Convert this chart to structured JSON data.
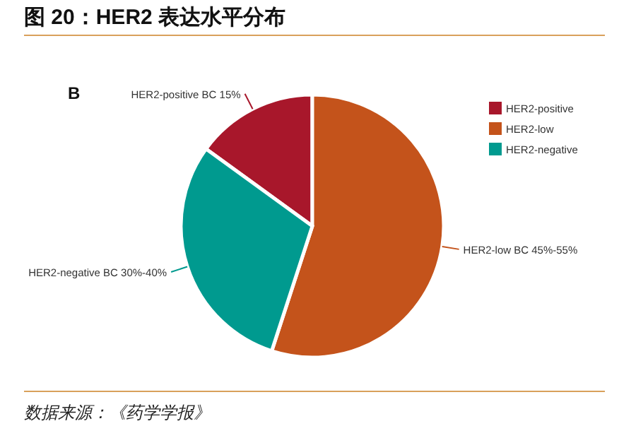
{
  "chart_data": {
    "type": "pie",
    "title": "图 20：HER2 表达水平分布",
    "categories": [
      "HER2-positive",
      "HER2-low",
      "HER2-negative"
    ],
    "values": [
      15,
      55,
      30
    ],
    "colors": [
      "#a8172b",
      "#c4531b",
      "#009a8f"
    ],
    "legend": "top right",
    "annotations": [
      "B",
      "数据来源：《药学学报》",
      {
        "text": "HER2-positive BC 15%",
        "x": "HER2-positive"
      },
      {
        "text": "HER2-low BC 45%-55%",
        "x": "HER2-low"
      },
      {
        "text": "HER2-negative BC 30%-40%",
        "x": "HER2-negative"
      }
    ]
  }
}
